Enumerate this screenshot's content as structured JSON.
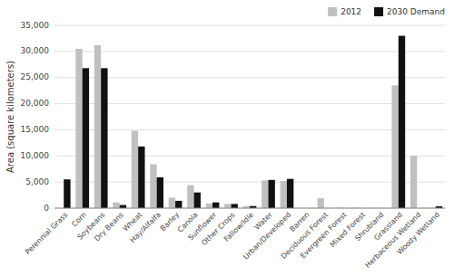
{
  "chart_data": {
    "type": "bar",
    "categories": [
      "Perennial Grass",
      "Corn",
      "Soybeans",
      "Dry Beans",
      "Wheat",
      "Hay/Alfalfa",
      "Barley",
      "Canola",
      "Sunflower",
      "Other Crops",
      "Fallow/Idle",
      "Water",
      "Urban/Developed",
      "Barren",
      "Deciduous Forest",
      "Evergreen Forest",
      "Mixed Forest",
      "Shrubland",
      "Grassland",
      "Herbaceous Wetland",
      "Woody Wetland"
    ],
    "series": [
      {
        "name": "2012",
        "color": "#c0c0c0",
        "values": [
          0,
          30500,
          31200,
          1100,
          14800,
          8400,
          2000,
          4400,
          900,
          800,
          400,
          5300,
          5200,
          0,
          1900,
          100,
          100,
          100,
          23500,
          10000,
          100
        ]
      },
      {
        "name": "2030 Demand",
        "color": "#111111",
        "values": [
          5500,
          26800,
          26800,
          600,
          11800,
          5900,
          1400,
          3000,
          1100,
          800,
          400,
          5400,
          5600,
          0,
          0,
          0,
          0,
          0,
          33000,
          0,
          350
        ]
      }
    ],
    "y_label": "Area (square kilometers)",
    "ylim": [
      0,
      35000
    ],
    "yticks": [
      0,
      {
        "value": 5000,
        "label": "5,000"
      },
      {
        "value": 10000,
        "label": "10,000"
      },
      {
        "value": 15000,
        "label": "15,000"
      },
      {
        "value": 20000,
        "label": "20,000"
      },
      {
        "value": 25000,
        "label": "25,000"
      },
      {
        "value": 30000,
        "label": "30,000"
      },
      {
        "value": 35000,
        "label": "35,000"
      }
    ],
    "grid": true,
    "legend": "upper right"
  }
}
